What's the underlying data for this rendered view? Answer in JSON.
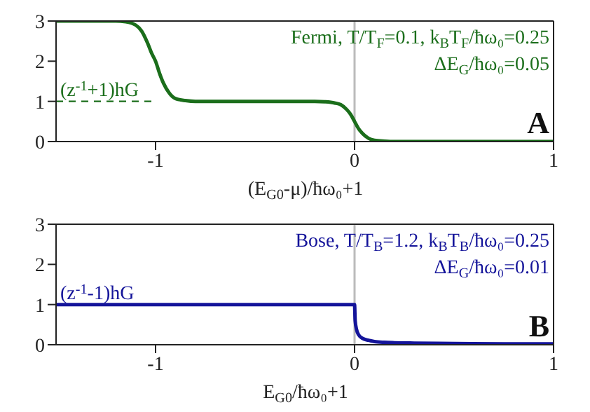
{
  "chart_data": [
    {
      "type": "line",
      "xlabel": "(E$_{G0}$-μ)/ħω₀+1",
      "xlim": [
        -1.5,
        1
      ],
      "xticks": [
        -1,
        0,
        1
      ],
      "ylim": [
        0,
        3
      ],
      "yticks": [
        0,
        1,
        2,
        3
      ],
      "series": [
        {
          "color": "#1b6e1b",
          "x": [
            -1.5,
            -1.2,
            -1.15,
            -1.1,
            -1.07,
            -1.04,
            -1.02,
            -1.0,
            -0.98,
            -0.96,
            -0.93,
            -0.9,
            -0.85,
            -0.8,
            -0.2,
            -0.15,
            -0.1,
            -0.07,
            -0.04,
            -0.02,
            0,
            0.02,
            0.04,
            0.07,
            0.1,
            0.15,
            0.2,
            1
          ],
          "values": [
            3,
            3,
            2.98,
            2.9,
            2.75,
            2.45,
            2.2,
            2.0,
            1.7,
            1.45,
            1.2,
            1.07,
            1.02,
            1.0,
            1.0,
            0.99,
            0.96,
            0.92,
            0.8,
            0.68,
            0.5,
            0.32,
            0.2,
            0.08,
            0.03,
            0.01,
            0,
            0
          ]
        },
        {
          "color": "#1b6e1b",
          "line_style": "dashed",
          "x": [
            -1.5,
            -1.02
          ],
          "values": [
            1,
            1
          ]
        }
      ],
      "ref_lines": [
        {
          "axis": "x",
          "value": 0,
          "color": "#bbbbbb"
        }
      ],
      "annotations": [
        {
          "text": "(z$^{-1}$+1)hG",
          "x": -1.5,
          "y": 1
        },
        "Fermi, T/T$_{F}$=0.1, k$_{B}$T$_{F}$/ħω₀=0.25",
        "ΔE$_{G}$/ħω₀=0.05",
        "A"
      ]
    },
    {
      "type": "line",
      "xlabel": "E$_{G0}$/ħω₀+1",
      "xlim": [
        -1.5,
        1
      ],
      "xticks": [
        -1,
        0,
        1
      ],
      "ylim": [
        0,
        3
      ],
      "yticks": [
        0,
        1,
        2,
        3
      ],
      "series": [
        {
          "color": "#14149a",
          "x": [
            -1.5,
            0,
            0.003,
            0.01,
            0.02,
            0.04,
            0.07,
            0.1,
            0.15,
            0.2,
            0.3,
            0.5,
            0.75,
            1
          ],
          "values": [
            1,
            1,
            0.6,
            0.38,
            0.25,
            0.16,
            0.11,
            0.08,
            0.06,
            0.05,
            0.04,
            0.03,
            0.02,
            0.02
          ]
        }
      ],
      "ref_lines": [
        {
          "axis": "x",
          "value": 0,
          "color": "#bbbbbb"
        }
      ],
      "annotations": [
        {
          "text": "(z$^{-1}$-1)hG",
          "x": -1.5,
          "y": 1
        },
        "Bose, T/T$_{B}$=1.2, k$_{B}$T$_{B}$/ħω₀=0.25",
        "ΔE$_{G}$/ħω₀=0.01",
        "B"
      ]
    }
  ]
}
